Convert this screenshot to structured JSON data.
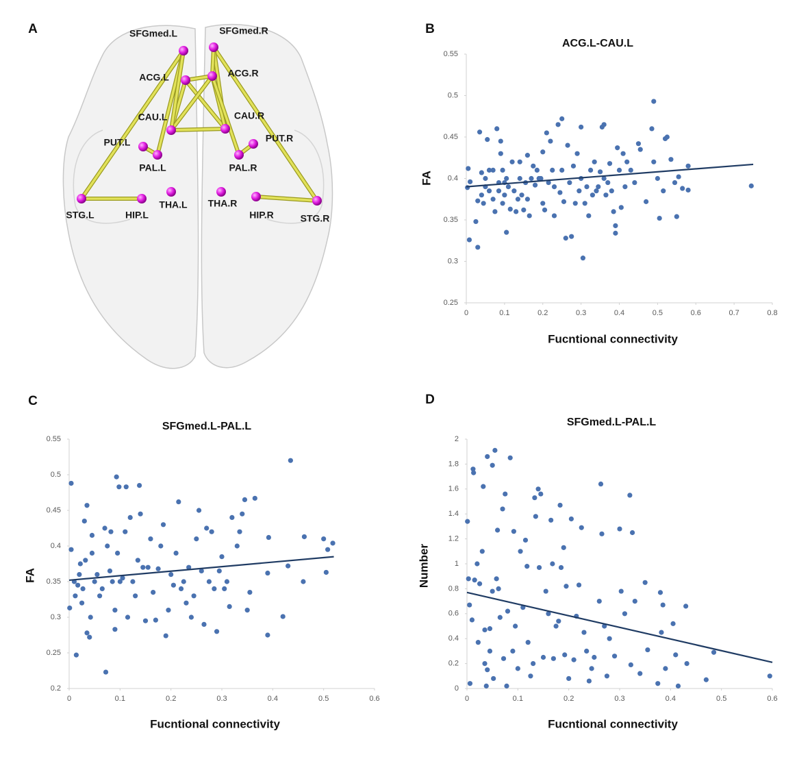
{
  "diagram": {
    "panel_label": "A",
    "nodes": [
      {
        "label": "SFGmed.L"
      },
      {
        "label": "SFGmed.R"
      },
      {
        "label": "ACG.L"
      },
      {
        "label": "ACG.R"
      },
      {
        "label": "CAU.L"
      },
      {
        "label": "CAU.R"
      },
      {
        "label": "PUT.L"
      },
      {
        "label": "PUT.R"
      },
      {
        "label": "PAL.L"
      },
      {
        "label": "PAL.R"
      },
      {
        "label": "STG.L"
      },
      {
        "label": "HIP.L"
      },
      {
        "label": "THA.L"
      },
      {
        "label": "THA.R"
      },
      {
        "label": "HIP.R"
      },
      {
        "label": "STG.R"
      }
    ]
  },
  "chart_data": [
    {
      "type": "scatter",
      "panel_label": "B",
      "title": "ACG.L-CAU.L",
      "x_label": "Fucntional connectivity",
      "y_label": "FA",
      "xlim": [
        0,
        0.8
      ],
      "xticks": [
        0,
        0.1,
        0.2,
        0.3,
        0.4,
        0.5,
        0.6,
        0.7,
        0.8
      ],
      "ylim": [
        0.25,
        0.55
      ],
      "yticks": [
        0.25,
        0.3,
        0.35,
        0.4,
        0.45,
        0.5,
        0.55
      ],
      "series": [
        {
          "color": "#4a72b0",
          "x": [
            0.003,
            0.005,
            0.008,
            0.01,
            0.025,
            0.03,
            0.03,
            0.035,
            0.04,
            0.04,
            0.045,
            0.05,
            0.05,
            0.055,
            0.06,
            0.06,
            0.07,
            0.07,
            0.075,
            0.08,
            0.085,
            0.085,
            0.09,
            0.09,
            0.095,
            0.095,
            0.1,
            0.1,
            0.105,
            0.105,
            0.11,
            0.115,
            0.12,
            0.125,
            0.13,
            0.135,
            0.14,
            0.14,
            0.145,
            0.15,
            0.155,
            0.16,
            0.16,
            0.165,
            0.17,
            0.175,
            0.18,
            0.185,
            0.19,
            0.195,
            0.2,
            0.2,
            0.205,
            0.21,
            0.215,
            0.22,
            0.225,
            0.23,
            0.23,
            0.24,
            0.245,
            0.25,
            0.25,
            0.255,
            0.26,
            0.265,
            0.27,
            0.275,
            0.28,
            0.285,
            0.29,
            0.295,
            0.3,
            0.3,
            0.305,
            0.31,
            0.315,
            0.32,
            0.325,
            0.33,
            0.335,
            0.34,
            0.345,
            0.35,
            0.355,
            0.36,
            0.36,
            0.365,
            0.37,
            0.375,
            0.38,
            0.385,
            0.39,
            0.39,
            0.395,
            0.4,
            0.405,
            0.41,
            0.415,
            0.42,
            0.43,
            0.44,
            0.45,
            0.455,
            0.47,
            0.485,
            0.49,
            0.49,
            0.5,
            0.505,
            0.515,
            0.52,
            0.525,
            0.535,
            0.545,
            0.55,
            0.555,
            0.565,
            0.58,
            0.58,
            0.745
          ],
          "values": [
            0.389,
            0.412,
            0.326,
            0.396,
            0.348,
            0.373,
            0.317,
            0.456,
            0.407,
            0.38,
            0.37,
            0.39,
            0.4,
            0.447,
            0.385,
            0.41,
            0.41,
            0.375,
            0.36,
            0.46,
            0.395,
            0.385,
            0.445,
            0.43,
            0.37,
            0.41,
            0.395,
            0.38,
            0.335,
            0.4,
            0.39,
            0.363,
            0.42,
            0.385,
            0.36,
            0.375,
            0.4,
            0.42,
            0.38,
            0.362,
            0.395,
            0.375,
            0.428,
            0.355,
            0.4,
            0.415,
            0.392,
            0.41,
            0.4,
            0.4,
            0.432,
            0.37,
            0.362,
            0.455,
            0.395,
            0.445,
            0.41,
            0.39,
            0.355,
            0.465,
            0.383,
            0.472,
            0.41,
            0.372,
            0.328,
            0.44,
            0.395,
            0.33,
            0.415,
            0.37,
            0.43,
            0.385,
            0.4,
            0.462,
            0.304,
            0.37,
            0.39,
            0.355,
            0.41,
            0.38,
            0.42,
            0.385,
            0.39,
            0.408,
            0.462,
            0.465,
            0.4,
            0.38,
            0.395,
            0.418,
            0.385,
            0.36,
            0.334,
            0.343,
            0.437,
            0.41,
            0.365,
            0.43,
            0.39,
            0.42,
            0.41,
            0.395,
            0.442,
            0.435,
            0.372,
            0.46,
            0.493,
            0.42,
            0.4,
            0.352,
            0.385,
            0.448,
            0.45,
            0.423,
            0.395,
            0.354,
            0.402,
            0.388,
            0.415,
            0.386,
            0.391
          ]
        }
      ],
      "trendline": {
        "color": "#1f3b63",
        "x": [
          0,
          0.75
        ],
        "values": [
          0.39,
          0.417
        ]
      }
    },
    {
      "type": "scatter",
      "panel_label": "C",
      "title": "SFGmed.L-PAL.L",
      "x_label": "Fucntional connectivity",
      "y_label": "FA",
      "xlim": [
        0,
        0.6
      ],
      "xticks": [
        0,
        0.1,
        0.2,
        0.3,
        0.4,
        0.5,
        0.6
      ],
      "ylim": [
        0.2,
        0.55
      ],
      "yticks": [
        0.2,
        0.25,
        0.3,
        0.35,
        0.4,
        0.45,
        0.5,
        0.55
      ],
      "series": [
        {
          "color": "#4a72b0",
          "x": [
            0.001,
            0.004,
            0.004,
            0.01,
            0.012,
            0.014,
            0.017,
            0.02,
            0.022,
            0.025,
            0.027,
            0.03,
            0.032,
            0.035,
            0.035,
            0.04,
            0.042,
            0.045,
            0.045,
            0.05,
            0.055,
            0.06,
            0.065,
            0.07,
            0.072,
            0.075,
            0.08,
            0.082,
            0.085,
            0.09,
            0.09,
            0.093,
            0.095,
            0.098,
            0.1,
            0.105,
            0.11,
            0.112,
            0.115,
            0.12,
            0.125,
            0.13,
            0.135,
            0.138,
            0.14,
            0.145,
            0.15,
            0.155,
            0.16,
            0.165,
            0.17,
            0.175,
            0.18,
            0.185,
            0.19,
            0.195,
            0.2,
            0.205,
            0.21,
            0.215,
            0.22,
            0.225,
            0.23,
            0.235,
            0.24,
            0.245,
            0.25,
            0.255,
            0.26,
            0.265,
            0.27,
            0.275,
            0.28,
            0.285,
            0.29,
            0.295,
            0.3,
            0.305,
            0.31,
            0.315,
            0.32,
            0.33,
            0.335,
            0.34,
            0.345,
            0.35,
            0.355,
            0.365,
            0.39,
            0.39,
            0.392,
            0.42,
            0.43,
            0.435,
            0.46,
            0.462,
            0.5,
            0.505,
            0.508,
            0.518
          ],
          "values": [
            0.313,
            0.488,
            0.395,
            0.35,
            0.33,
            0.247,
            0.345,
            0.36,
            0.375,
            0.32,
            0.34,
            0.435,
            0.38,
            0.457,
            0.278,
            0.272,
            0.3,
            0.39,
            0.415,
            0.35,
            0.36,
            0.33,
            0.34,
            0.425,
            0.223,
            0.4,
            0.365,
            0.42,
            0.35,
            0.31,
            0.283,
            0.497,
            0.39,
            0.483,
            0.35,
            0.355,
            0.42,
            0.483,
            0.3,
            0.44,
            0.35,
            0.33,
            0.38,
            0.485,
            0.445,
            0.37,
            0.295,
            0.37,
            0.41,
            0.335,
            0.296,
            0.368,
            0.4,
            0.43,
            0.274,
            0.31,
            0.36,
            0.345,
            0.39,
            0.462,
            0.34,
            0.35,
            0.32,
            0.37,
            0.3,
            0.33,
            0.41,
            0.45,
            0.365,
            0.29,
            0.425,
            0.35,
            0.42,
            0.34,
            0.28,
            0.365,
            0.385,
            0.34,
            0.35,
            0.315,
            0.44,
            0.4,
            0.42,
            0.445,
            0.465,
            0.31,
            0.335,
            0.467,
            0.275,
            0.362,
            0.412,
            0.301,
            0.372,
            0.52,
            0.35,
            0.413,
            0.41,
            0.363,
            0.395,
            0.404
          ]
        }
      ],
      "trendline": {
        "color": "#1f3b63",
        "x": [
          0,
          0.52
        ],
        "values": [
          0.352,
          0.385
        ]
      }
    },
    {
      "type": "scatter",
      "panel_label": "D",
      "title": "SFGmed.L-PAL.L",
      "x_label": "Fucntional connectivity",
      "y_label": "Number",
      "xlim": [
        0,
        0.6
      ],
      "xticks": [
        0,
        0.1,
        0.2,
        0.3,
        0.4,
        0.5,
        0.6
      ],
      "ylim": [
        0,
        2
      ],
      "yticks": [
        0,
        0.2,
        0.4,
        0.6,
        0.8,
        1,
        1.2,
        1.4,
        1.6,
        1.8,
        2
      ],
      "series": [
        {
          "color": "#4a72b0",
          "x": [
            0.001,
            0.003,
            0.005,
            0.006,
            0.01,
            0.012,
            0.013,
            0.015,
            0.02,
            0.022,
            0.025,
            0.03,
            0.032,
            0.035,
            0.035,
            0.038,
            0.04,
            0.04,
            0.045,
            0.045,
            0.05,
            0.05,
            0.052,
            0.055,
            0.058,
            0.06,
            0.062,
            0.065,
            0.07,
            0.072,
            0.075,
            0.078,
            0.08,
            0.085,
            0.09,
            0.092,
            0.095,
            0.1,
            0.105,
            0.11,
            0.115,
            0.118,
            0.12,
            0.125,
            0.13,
            0.133,
            0.135,
            0.14,
            0.142,
            0.145,
            0.15,
            0.155,
            0.16,
            0.165,
            0.168,
            0.17,
            0.175,
            0.18,
            0.183,
            0.185,
            0.19,
            0.192,
            0.195,
            0.2,
            0.205,
            0.21,
            0.215,
            0.22,
            0.225,
            0.23,
            0.235,
            0.24,
            0.245,
            0.25,
            0.26,
            0.263,
            0.265,
            0.27,
            0.275,
            0.28,
            0.29,
            0.3,
            0.303,
            0.31,
            0.32,
            0.322,
            0.325,
            0.33,
            0.34,
            0.35,
            0.355,
            0.375,
            0.38,
            0.382,
            0.385,
            0.39,
            0.405,
            0.41,
            0.415,
            0.43,
            0.432,
            0.47,
            0.485,
            0.595
          ],
          "values": [
            1.34,
            0.88,
            0.67,
            0.04,
            0.55,
            1.76,
            1.73,
            0.87,
            1.0,
            0.37,
            0.84,
            1.1,
            1.62,
            0.47,
            0.2,
            0.02,
            1.86,
            0.15,
            0.3,
            0.48,
            0.78,
            1.79,
            0.08,
            1.91,
            0.88,
            1.27,
            0.8,
            0.57,
            1.44,
            0.24,
            1.56,
            0.02,
            0.62,
            1.85,
            0.3,
            1.26,
            0.5,
            0.16,
            1.1,
            0.65,
            1.19,
            0.98,
            0.37,
            0.1,
            0.2,
            1.53,
            1.38,
            1.6,
            0.97,
            1.56,
            0.25,
            0.78,
            0.6,
            1.35,
            1.0,
            0.24,
            0.5,
            0.54,
            1.47,
            0.97,
            1.13,
            0.27,
            0.82,
            0.08,
            1.36,
            0.23,
            0.58,
            0.83,
            1.29,
            0.45,
            0.3,
            0.06,
            0.16,
            0.25,
            0.7,
            1.64,
            1.24,
            0.5,
            0.1,
            0.4,
            0.26,
            1.28,
            0.78,
            0.6,
            1.55,
            0.19,
            1.25,
            0.7,
            0.12,
            0.85,
            0.31,
            0.04,
            0.77,
            0.45,
            0.67,
            0.16,
            0.52,
            0.27,
            0.02,
            0.66,
            0.2,
            0.07,
            0.29,
            0.1
          ]
        }
      ],
      "trendline": {
        "color": "#1f3b63",
        "x": [
          0,
          0.6
        ],
        "values": [
          0.77,
          0.21
        ]
      }
    }
  ]
}
